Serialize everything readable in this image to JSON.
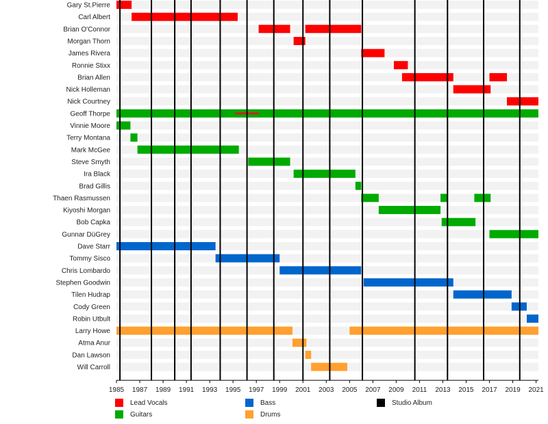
{
  "chart_data": {
    "type": "timeline",
    "x_range": [
      1985,
      2021.2
    ],
    "ticks": [
      "1985",
      "1987",
      "1989",
      "1991",
      "1993",
      "1995",
      "1997",
      "1999",
      "2001",
      "2003",
      "2005",
      "2007",
      "2009",
      "2011",
      "2013",
      "2015",
      "2017",
      "2019",
      "2021"
    ],
    "studio_albums": [
      1985.3,
      1988.0,
      1990.0,
      1991.4,
      1993.9,
      1996.2,
      1998.5,
      2001.0,
      2003.3,
      2006.1,
      2010.6,
      2013.4,
      2016.5,
      2019.6
    ],
    "members": [
      {
        "name": "Gary St.Pierre",
        "spans": [
          {
            "role": "vocals",
            "start": 1985.0,
            "end": 1986.3
          }
        ]
      },
      {
        "name": "Carl Albert",
        "spans": [
          {
            "role": "vocals",
            "start": 1986.3,
            "end": 1995.4
          }
        ]
      },
      {
        "name": "Brian O'Connor",
        "spans": [
          {
            "role": "vocals",
            "start": 1997.2,
            "end": 1999.9
          },
          {
            "role": "vocals",
            "start": 2001.2,
            "end": 2006.0
          }
        ]
      },
      {
        "name": "Morgan Thorn",
        "spans": [
          {
            "role": "vocals",
            "start": 2000.2,
            "end": 2001.2
          }
        ]
      },
      {
        "name": "James Rivera",
        "spans": [
          {
            "role": "vocals",
            "start": 2006.0,
            "end": 2008.0
          }
        ]
      },
      {
        "name": "Ronnie Stixx",
        "spans": [
          {
            "role": "vocals",
            "start": 2008.8,
            "end": 2010.0
          }
        ]
      },
      {
        "name": "Brian Allen",
        "spans": [
          {
            "role": "vocals",
            "start": 2009.5,
            "end": 2013.9
          },
          {
            "role": "vocals",
            "start": 2017.0,
            "end": 2018.5
          }
        ]
      },
      {
        "name": "Nick Holleman",
        "spans": [
          {
            "role": "vocals",
            "start": 2013.9,
            "end": 2017.1
          }
        ]
      },
      {
        "name": "Nick Courtney",
        "spans": [
          {
            "role": "vocals",
            "start": 2018.5,
            "end": 2021.2
          }
        ]
      },
      {
        "name": "Geoff Thorpe",
        "spans": [
          {
            "role": "guitars",
            "start": 1985.0,
            "end": 2021.2
          },
          {
            "role": "vocals-overlay",
            "start": 1995.2,
            "end": 1997.2
          }
        ]
      },
      {
        "name": "Vinnie Moore",
        "spans": [
          {
            "role": "guitars",
            "start": 1985.0,
            "end": 1986.2
          }
        ]
      },
      {
        "name": "Terry Montana",
        "spans": [
          {
            "role": "guitars",
            "start": 1986.2,
            "end": 1986.8
          }
        ]
      },
      {
        "name": "Mark McGee",
        "spans": [
          {
            "role": "guitars",
            "start": 1986.8,
            "end": 1995.5
          }
        ]
      },
      {
        "name": "Steve Smyth",
        "spans": [
          {
            "role": "guitars",
            "start": 1996.3,
            "end": 1999.9
          }
        ]
      },
      {
        "name": "Ira Black",
        "spans": [
          {
            "role": "guitars",
            "start": 2000.2,
            "end": 2005.5
          }
        ]
      },
      {
        "name": "Brad Gillis",
        "spans": [
          {
            "role": "guitars",
            "start": 2005.5,
            "end": 2006.0
          }
        ]
      },
      {
        "name": "Thaen Rasmussen",
        "spans": [
          {
            "role": "guitars",
            "start": 2006.0,
            "end": 2007.5
          },
          {
            "role": "guitars",
            "start": 2012.8,
            "end": 2013.4
          },
          {
            "role": "guitars",
            "start": 2015.7,
            "end": 2017.1
          }
        ]
      },
      {
        "name": "Kiyoshi Morgan",
        "spans": [
          {
            "role": "guitars",
            "start": 2007.5,
            "end": 2012.8
          }
        ]
      },
      {
        "name": "Bob Capka",
        "spans": [
          {
            "role": "guitars",
            "start": 2012.9,
            "end": 2015.8
          }
        ]
      },
      {
        "name": "Gunnar DüGrey",
        "spans": [
          {
            "role": "guitars",
            "start": 2017.0,
            "end": 2021.2
          }
        ]
      },
      {
        "name": "Dave Starr",
        "spans": [
          {
            "role": "bass",
            "start": 1985.0,
            "end": 1993.5
          }
        ]
      },
      {
        "name": "Tommy Sisco",
        "spans": [
          {
            "role": "bass",
            "start": 1993.5,
            "end": 1999.0
          }
        ]
      },
      {
        "name": "Chris Lombardo",
        "spans": [
          {
            "role": "bass",
            "start": 1999.0,
            "end": 2006.0
          }
        ]
      },
      {
        "name": "Stephen Goodwin",
        "spans": [
          {
            "role": "bass",
            "start": 2006.2,
            "end": 2013.9
          }
        ]
      },
      {
        "name": "Tilen Hudrap",
        "spans": [
          {
            "role": "bass",
            "start": 2013.9,
            "end": 2018.9
          }
        ]
      },
      {
        "name": "Cody Green",
        "spans": [
          {
            "role": "bass",
            "start": 2018.9,
            "end": 2020.2
          }
        ]
      },
      {
        "name": "Robin Utbult",
        "spans": [
          {
            "role": "bass",
            "start": 2020.2,
            "end": 2021.2
          }
        ]
      },
      {
        "name": "Larry Howe",
        "spans": [
          {
            "role": "drums",
            "start": 1985.0,
            "end": 2000.1
          },
          {
            "role": "drums",
            "start": 2005.0,
            "end": 2021.2
          }
        ]
      },
      {
        "name": "Atma Anur",
        "spans": [
          {
            "role": "drums",
            "start": 2000.1,
            "end": 2001.3
          }
        ]
      },
      {
        "name": "Dan Lawson",
        "spans": [
          {
            "role": "drums",
            "start": 2001.2,
            "end": 2001.7
          }
        ]
      },
      {
        "name": "Will Carroll",
        "spans": [
          {
            "role": "drums",
            "start": 2001.7,
            "end": 2004.8
          }
        ]
      }
    ],
    "colors": {
      "vocals": "#ff0000",
      "vocals-overlay": "#d42020",
      "guitars": "#00aa00",
      "bass": "#0066cc",
      "drums": "#ffa030",
      "studio_album": "#000000",
      "row_stripe": "#f2f2f2"
    },
    "legend": [
      {
        "label": "Lead Vocals",
        "role": "vocals"
      },
      {
        "label": "Guitars",
        "role": "guitars"
      },
      {
        "label": "Bass",
        "role": "bass"
      },
      {
        "label": "Drums",
        "role": "drums"
      },
      {
        "label": "Studio Album",
        "role": "studio_album"
      }
    ]
  }
}
